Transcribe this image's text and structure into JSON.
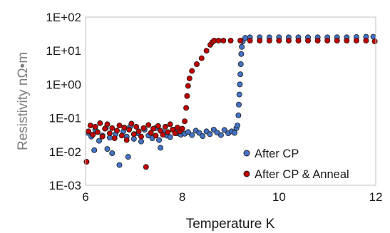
{
  "chart_data": {
    "type": "scatter",
    "title": "",
    "xlabel": "Temperature K",
    "ylabel": "Resistivity  nΩ•m",
    "xlim": [
      6,
      12
    ],
    "ylim": [
      0.001,
      100
    ],
    "yscale": "log",
    "grid": false,
    "legend_position": "bottom-right",
    "xticks": [
      "6",
      "8",
      "10",
      "12"
    ],
    "yticks": [
      "1E-03",
      "1E-02",
      "1E-01",
      "1E+00",
      "1E+01",
      "1E+02"
    ],
    "series": [
      {
        "name": "After CP",
        "color": "#4472c4",
        "points": [
          [
            6.05,
            0.036
          ],
          [
            6.12,
            0.028
          ],
          [
            6.2,
            0.045
          ],
          [
            6.28,
            0.021
          ],
          [
            6.35,
            0.03
          ],
          [
            6.42,
            0.05
          ],
          [
            6.5,
            0.026
          ],
          [
            6.55,
            0.009
          ],
          [
            6.62,
            0.033
          ],
          [
            6.7,
            0.004
          ],
          [
            6.78,
            0.04
          ],
          [
            6.85,
            0.028
          ],
          [
            6.92,
            0.055
          ],
          [
            7.0,
            0.024
          ],
          [
            7.08,
            0.035
          ],
          [
            7.15,
            0.02
          ],
          [
            7.22,
            0.045
          ],
          [
            7.3,
            0.03
          ],
          [
            7.38,
            0.025
          ],
          [
            7.45,
            0.05
          ],
          [
            7.52,
            0.022
          ],
          [
            7.6,
            0.038
          ],
          [
            7.68,
            0.03
          ],
          [
            7.75,
            0.027
          ],
          [
            7.82,
            0.045
          ],
          [
            7.9,
            0.035
          ],
          [
            7.97,
            0.032
          ],
          [
            6.45,
            0.012
          ],
          [
            6.88,
            0.007
          ],
          [
            7.55,
            0.013
          ],
          [
            6.18,
            0.011
          ],
          [
            8.05,
            0.034
          ],
          [
            8.12,
            0.038
          ],
          [
            8.2,
            0.031
          ],
          [
            8.28,
            0.042
          ],
          [
            8.35,
            0.036
          ],
          [
            8.42,
            0.029
          ],
          [
            8.5,
            0.04
          ],
          [
            8.57,
            0.033
          ],
          [
            8.65,
            0.045
          ],
          [
            8.72,
            0.037
          ],
          [
            8.8,
            0.031
          ],
          [
            8.87,
            0.044
          ],
          [
            8.95,
            0.035
          ],
          [
            9.02,
            0.04
          ],
          [
            9.08,
            0.036
          ],
          [
            9.12,
            0.05
          ],
          [
            9.14,
            0.06
          ],
          [
            9.16,
            0.12
          ],
          [
            9.17,
            0.25
          ],
          [
            9.18,
            0.5
          ],
          [
            9.19,
            1.0
          ],
          [
            9.2,
            2.0
          ],
          [
            9.21,
            4.0
          ],
          [
            9.22,
            8.0
          ],
          [
            9.23,
            13
          ],
          [
            9.25,
            19
          ],
          [
            9.3,
            24
          ],
          [
            9.4,
            25
          ],
          [
            9.6,
            25
          ],
          [
            9.8,
            25
          ],
          [
            10.0,
            25
          ],
          [
            10.2,
            25
          ],
          [
            10.4,
            25
          ],
          [
            10.6,
            25
          ],
          [
            10.8,
            25
          ],
          [
            11.0,
            25
          ],
          [
            11.2,
            25
          ],
          [
            11.4,
            25
          ],
          [
            11.6,
            25.5
          ],
          [
            11.8,
            26
          ],
          [
            11.95,
            26
          ]
        ]
      },
      {
        "name": "After CP & Anneal",
        "color": "#c00000",
        "points": [
          [
            6.02,
            0.005
          ],
          [
            6.06,
            0.04
          ],
          [
            6.1,
            0.06
          ],
          [
            6.15,
            0.032
          ],
          [
            6.2,
            0.055
          ],
          [
            6.25,
            0.038
          ],
          [
            6.3,
            0.07
          ],
          [
            6.35,
            0.028
          ],
          [
            6.4,
            0.048
          ],
          [
            6.45,
            0.065
          ],
          [
            6.5,
            0.035
          ],
          [
            6.55,
            0.05
          ],
          [
            6.6,
            0.025
          ],
          [
            6.65,
            0.042
          ],
          [
            6.7,
            0.06
          ],
          [
            6.75,
            0.03
          ],
          [
            6.8,
            0.052
          ],
          [
            6.85,
            0.022
          ],
          [
            6.9,
            0.045
          ],
          [
            6.95,
            0.068
          ],
          [
            7.0,
            0.033
          ],
          [
            7.05,
            0.055
          ],
          [
            7.1,
            0.04
          ],
          [
            7.15,
            0.028
          ],
          [
            7.2,
            0.05
          ],
          [
            7.25,
            0.0035
          ],
          [
            7.3,
            0.062
          ],
          [
            7.35,
            0.036
          ],
          [
            7.4,
            0.048
          ],
          [
            7.45,
            0.03
          ],
          [
            7.5,
            0.058
          ],
          [
            7.55,
            0.042
          ],
          [
            7.6,
            0.032
          ],
          [
            7.65,
            0.055
          ],
          [
            7.7,
            0.038
          ],
          [
            7.75,
            0.065
          ],
          [
            7.8,
            0.045
          ],
          [
            7.85,
            0.035
          ],
          [
            7.9,
            0.052
          ],
          [
            7.95,
            0.04
          ],
          [
            8.0,
            0.048
          ],
          [
            8.05,
            0.08
          ],
          [
            8.08,
            0.2
          ],
          [
            8.1,
            0.45
          ],
          [
            8.12,
            0.9
          ],
          [
            8.15,
            1.5
          ],
          [
            8.2,
            2.5
          ],
          [
            8.3,
            4
          ],
          [
            8.4,
            6
          ],
          [
            8.5,
            10
          ],
          [
            8.58,
            15
          ],
          [
            8.62,
            18
          ],
          [
            8.66,
            20
          ],
          [
            8.75,
            20
          ],
          [
            8.85,
            20
          ],
          [
            9.0,
            20
          ],
          [
            9.2,
            20
          ],
          [
            9.4,
            20
          ],
          [
            9.6,
            20
          ],
          [
            9.8,
            20
          ],
          [
            10.0,
            20
          ],
          [
            10.2,
            20
          ],
          [
            10.4,
            20
          ],
          [
            10.6,
            20
          ],
          [
            10.8,
            20
          ],
          [
            11.0,
            20
          ],
          [
            11.2,
            20
          ],
          [
            11.4,
            20
          ],
          [
            11.6,
            20
          ],
          [
            11.8,
            20
          ],
          [
            11.98,
            19
          ]
        ]
      }
    ]
  }
}
